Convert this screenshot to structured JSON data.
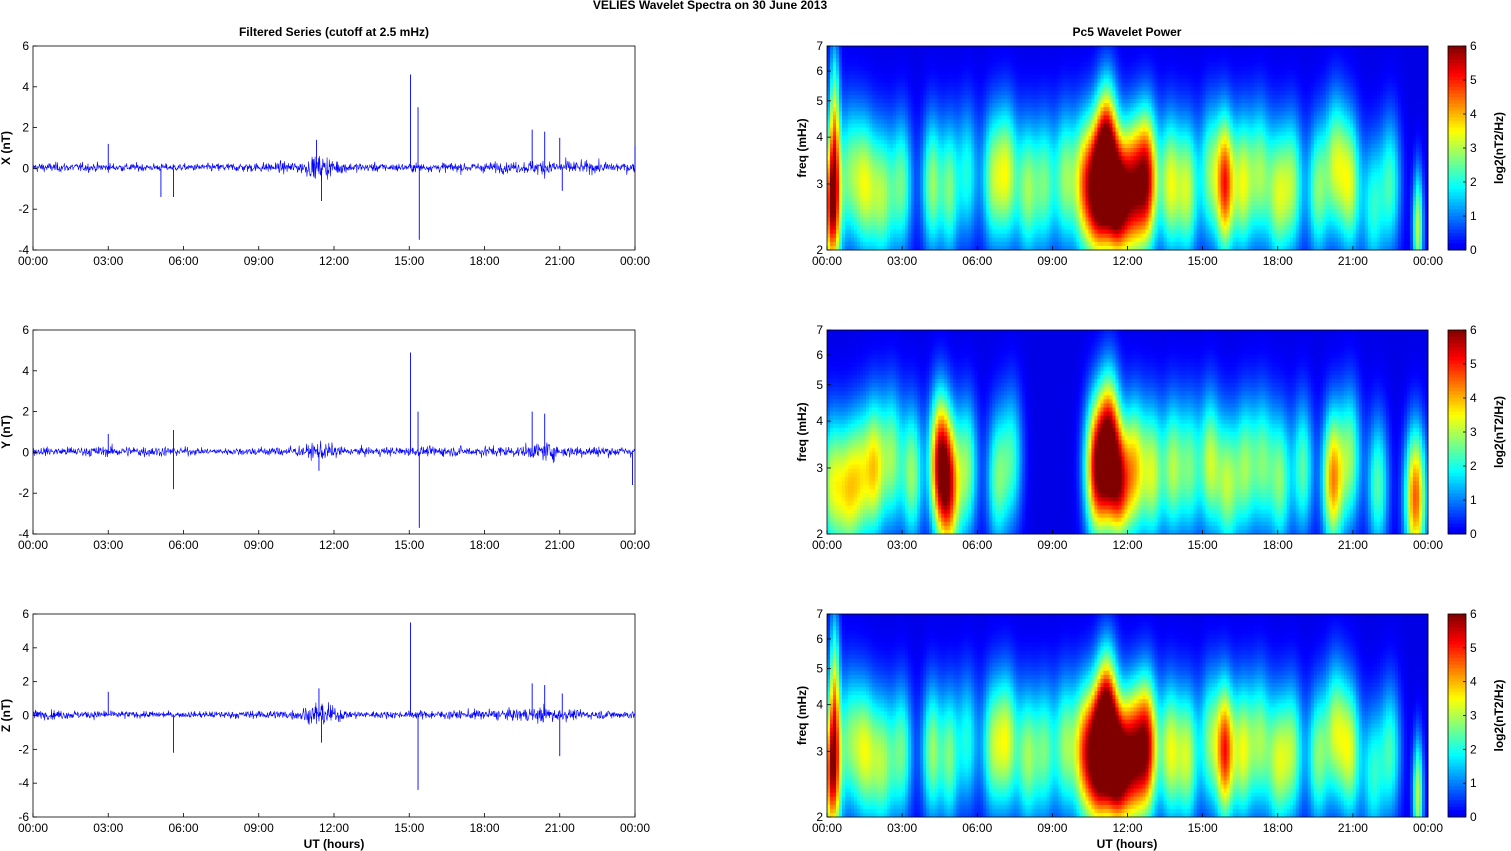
{
  "figure": {
    "suptitle": "VELIES Wavelet Spectra on 30 June      2013",
    "left_title": "Filtered Series (cutoff at 2.5 mHz)",
    "right_title": "Pc5 Wavelet Power",
    "xlabel": "UT (hours)"
  },
  "chart_data": [
    {
      "type": "line",
      "component": "X",
      "ylabel": "X (nT)",
      "xlim": [
        0,
        24
      ],
      "ylim": [
        -4,
        6
      ],
      "yticks": [
        "6",
        "4",
        "2",
        "0",
        "-2",
        "-4"
      ],
      "xticks": [
        "00:00",
        "03:00",
        "06:00",
        "09:00",
        "12:00",
        "15:00",
        "18:00",
        "21:00",
        "00:00"
      ],
      "color": "#0000ff",
      "noise_envelope": [
        [
          0,
          0.3
        ],
        [
          6,
          0.22
        ],
        [
          10.5,
          0.35
        ],
        [
          11.5,
          0.8
        ],
        [
          12.5,
          0.3
        ],
        [
          14.5,
          0.25
        ],
        [
          19.5,
          0.35
        ],
        [
          20.5,
          0.55
        ],
        [
          21.5,
          0.4
        ],
        [
          24,
          0.3
        ]
      ],
      "spikes": [
        [
          3.0,
          1.2
        ],
        [
          5.1,
          -1.4
        ],
        [
          5.6,
          -1.4
        ],
        [
          11.3,
          1.4
        ],
        [
          11.5,
          -1.6
        ],
        [
          15.05,
          4.6
        ],
        [
          15.35,
          3.0
        ],
        [
          15.4,
          -3.5
        ],
        [
          19.9,
          1.9
        ],
        [
          20.4,
          1.8
        ],
        [
          21.0,
          1.5
        ],
        [
          21.1,
          -1.1
        ],
        [
          24.0,
          1.1
        ]
      ]
    },
    {
      "type": "line",
      "component": "Y",
      "ylabel": "Y (nT)",
      "xlim": [
        0,
        24
      ],
      "ylim": [
        -4,
        6
      ],
      "yticks": [
        "6",
        "4",
        "2",
        "0",
        "-2",
        "-4"
      ],
      "xticks": [
        "00:00",
        "03:00",
        "06:00",
        "09:00",
        "12:00",
        "15:00",
        "18:00",
        "21:00",
        "00:00"
      ],
      "color": "#0000ff",
      "noise_envelope": [
        [
          0,
          0.25
        ],
        [
          4.5,
          0.35
        ],
        [
          5.5,
          0.3
        ],
        [
          7,
          0.18
        ],
        [
          10.8,
          0.35
        ],
        [
          11.5,
          0.6
        ],
        [
          12.5,
          0.25
        ],
        [
          19.5,
          0.35
        ],
        [
          20.5,
          0.6
        ],
        [
          21.5,
          0.35
        ],
        [
          24,
          0.3
        ]
      ],
      "spikes": [
        [
          3.0,
          0.9
        ],
        [
          5.6,
          1.1
        ],
        [
          5.6,
          -1.8
        ],
        [
          11.4,
          -0.9
        ],
        [
          15.05,
          4.9
        ],
        [
          15.35,
          2.0
        ],
        [
          15.4,
          -3.7
        ],
        [
          19.9,
          2.0
        ],
        [
          20.4,
          1.9
        ],
        [
          23.9,
          -1.6
        ]
      ]
    },
    {
      "type": "line",
      "component": "Z",
      "ylabel": "Z (nT)",
      "xlim": [
        0,
        24
      ],
      "ylim": [
        -6,
        6
      ],
      "yticks": [
        "6",
        "4",
        "2",
        "0",
        "-2",
        "-4",
        "-6"
      ],
      "xticks": [
        "00:00",
        "03:00",
        "06:00",
        "09:00",
        "12:00",
        "15:00",
        "18:00",
        "21:00",
        "00:00"
      ],
      "color": "#0000ff",
      "noise_envelope": [
        [
          0,
          0.35
        ],
        [
          6,
          0.22
        ],
        [
          10.5,
          0.35
        ],
        [
          11.5,
          1.0
        ],
        [
          12.5,
          0.3
        ],
        [
          14.5,
          0.25
        ],
        [
          19.5,
          0.45
        ],
        [
          20.5,
          0.7
        ],
        [
          21.5,
          0.35
        ],
        [
          24,
          0.3
        ]
      ],
      "spikes": [
        [
          3.0,
          1.4
        ],
        [
          5.6,
          -2.2
        ],
        [
          11.4,
          1.6
        ],
        [
          11.5,
          -1.6
        ],
        [
          15.05,
          5.5
        ],
        [
          15.35,
          -4.4
        ],
        [
          19.9,
          1.9
        ],
        [
          20.4,
          1.8
        ],
        [
          21.0,
          -2.4
        ],
        [
          21.1,
          1.3
        ]
      ]
    },
    {
      "type": "heatmap",
      "component": "X",
      "ylabel": "freq (mHz)",
      "xlim": [
        0,
        24
      ],
      "ylim": [
        2,
        7
      ],
      "yscale": "log",
      "yticks": [
        "7",
        "6",
        "5",
        "4",
        "3",
        "2"
      ],
      "xticks": [
        "00:00",
        "03:00",
        "06:00",
        "09:00",
        "12:00",
        "15:00",
        "18:00",
        "21:00",
        "00:00"
      ],
      "colorbar_label": "log2(nT2/Hz)",
      "colorbar_ticks": [
        "6",
        "5",
        "4",
        "3",
        "2",
        "1",
        "0"
      ],
      "clim": [
        0,
        6
      ],
      "colormap": [
        "#00008f",
        "#0000ff",
        "#00ffff",
        "#ffff00",
        "#ff0000",
        "#800000"
      ],
      "blobs": [
        [
          0.2,
          2.6,
          5.3,
          0.25,
          0.3
        ],
        [
          0.3,
          4.3,
          3.0,
          0.15,
          0.35
        ],
        [
          0.9,
          3.2,
          2.3,
          0.3,
          0.3
        ],
        [
          1.5,
          3.0,
          2.8,
          0.3,
          0.3
        ],
        [
          2.2,
          2.8,
          2.8,
          0.35,
          0.3
        ],
        [
          3.0,
          3.0,
          2.4,
          0.3,
          0.3
        ],
        [
          4.2,
          3.0,
          2.8,
          0.3,
          0.3
        ],
        [
          4.9,
          2.9,
          2.4,
          0.25,
          0.3
        ],
        [
          5.6,
          3.2,
          2.0,
          0.3,
          0.3
        ],
        [
          6.6,
          3.1,
          2.6,
          0.3,
          0.3
        ],
        [
          7.2,
          3.2,
          3.0,
          0.3,
          0.3
        ],
        [
          8.0,
          2.9,
          2.7,
          0.3,
          0.3
        ],
        [
          8.7,
          3.0,
          2.4,
          0.3,
          0.3
        ],
        [
          9.5,
          3.1,
          2.6,
          0.3,
          0.3
        ],
        [
          10.2,
          3.0,
          3.0,
          0.3,
          0.3
        ],
        [
          10.8,
          2.9,
          5.8,
          0.35,
          0.3
        ],
        [
          11.2,
          3.6,
          5.0,
          0.3,
          0.3
        ],
        [
          11.6,
          2.7,
          5.2,
          0.3,
          0.25
        ],
        [
          12.2,
          2.9,
          5.0,
          0.35,
          0.3
        ],
        [
          12.8,
          3.1,
          4.8,
          0.3,
          0.3
        ],
        [
          13.7,
          3.0,
          3.2,
          0.3,
          0.3
        ],
        [
          14.4,
          2.9,
          3.0,
          0.3,
          0.3
        ],
        [
          15.3,
          3.2,
          2.6,
          0.3,
          0.3
        ],
        [
          15.9,
          3.0,
          4.6,
          0.25,
          0.3
        ],
        [
          16.6,
          3.0,
          3.2,
          0.3,
          0.3
        ],
        [
          17.3,
          3.2,
          2.6,
          0.3,
          0.3
        ],
        [
          18.0,
          2.8,
          2.8,
          0.3,
          0.3
        ],
        [
          18.6,
          3.0,
          2.6,
          0.3,
          0.3
        ],
        [
          19.6,
          2.9,
          2.6,
          0.3,
          0.3
        ],
        [
          20.3,
          3.4,
          2.8,
          0.3,
          0.3
        ],
        [
          20.9,
          3.0,
          3.0,
          0.3,
          0.3
        ],
        [
          21.8,
          2.6,
          2.0,
          0.3,
          0.3
        ],
        [
          22.5,
          3.0,
          2.2,
          0.3,
          0.3
        ],
        [
          23.6,
          2.3,
          3.0,
          0.15,
          0.25
        ]
      ]
    },
    {
      "type": "heatmap",
      "component": "Y",
      "ylabel": "freq (mHz)",
      "xlim": [
        0,
        24
      ],
      "ylim": [
        2,
        7
      ],
      "yscale": "log",
      "yticks": [
        "7",
        "6",
        "5",
        "4",
        "3",
        "2"
      ],
      "xticks": [
        "00:00",
        "03:00",
        "06:00",
        "09:00",
        "12:00",
        "15:00",
        "18:00",
        "21:00",
        "00:00"
      ],
      "colorbar_label": "log2(nT2/Hz)",
      "colorbar_ticks": [
        "6",
        "5",
        "4",
        "3",
        "2",
        "1",
        "0"
      ],
      "clim": [
        0,
        6
      ],
      "colormap": [
        "#00008f",
        "#0000ff",
        "#00ffff",
        "#ffff00",
        "#ff0000",
        "#800000"
      ],
      "blobs": [
        [
          0.2,
          2.7,
          3.0,
          0.3,
          0.3
        ],
        [
          0.8,
          2.6,
          2.8,
          0.3,
          0.3
        ],
        [
          1.3,
          2.8,
          2.6,
          0.3,
          0.3
        ],
        [
          1.9,
          3.0,
          3.4,
          0.3,
          0.3
        ],
        [
          2.6,
          3.2,
          2.6,
          0.3,
          0.3
        ],
        [
          3.4,
          2.9,
          2.8,
          0.3,
          0.3
        ],
        [
          4.5,
          3.1,
          5.0,
          0.3,
          0.3
        ],
        [
          4.9,
          2.6,
          4.0,
          0.3,
          0.3
        ],
        [
          5.6,
          3.0,
          2.6,
          0.3,
          0.3
        ],
        [
          6.8,
          2.8,
          2.4,
          0.3,
          0.3
        ],
        [
          7.4,
          3.2,
          2.0,
          0.3,
          0.3
        ],
        [
          10.8,
          3.0,
          5.5,
          0.35,
          0.3
        ],
        [
          11.3,
          3.5,
          4.6,
          0.3,
          0.3
        ],
        [
          11.7,
          2.7,
          4.2,
          0.3,
          0.25
        ],
        [
          12.3,
          3.0,
          3.4,
          0.3,
          0.3
        ],
        [
          13.0,
          2.9,
          3.0,
          0.3,
          0.3
        ],
        [
          13.8,
          3.0,
          2.8,
          0.3,
          0.3
        ],
        [
          14.5,
          3.0,
          2.4,
          0.3,
          0.3
        ],
        [
          15.3,
          3.1,
          3.0,
          0.3,
          0.3
        ],
        [
          16.0,
          2.7,
          2.8,
          0.3,
          0.3
        ],
        [
          16.7,
          3.0,
          2.6,
          0.3,
          0.3
        ],
        [
          17.4,
          3.1,
          2.4,
          0.3,
          0.3
        ],
        [
          18.1,
          2.8,
          2.6,
          0.3,
          0.3
        ],
        [
          19.0,
          3.0,
          2.4,
          0.3,
          0.3
        ],
        [
          20.2,
          2.8,
          4.2,
          0.3,
          0.3
        ],
        [
          20.9,
          3.2,
          2.6,
          0.3,
          0.3
        ],
        [
          22.0,
          2.7,
          2.4,
          0.3,
          0.3
        ],
        [
          23.5,
          2.5,
          4.6,
          0.3,
          0.3
        ]
      ]
    },
    {
      "type": "heatmap",
      "component": "Z",
      "ylabel": "freq (mHz)",
      "xlim": [
        0,
        24
      ],
      "ylim": [
        2,
        7
      ],
      "yscale": "log",
      "yticks": [
        "7",
        "6",
        "5",
        "4",
        "3",
        "2"
      ],
      "xticks": [
        "00:00",
        "03:00",
        "06:00",
        "09:00",
        "12:00",
        "15:00",
        "18:00",
        "21:00",
        "00:00"
      ],
      "colorbar_label": "log2(nT2/Hz)",
      "colorbar_ticks": [
        "6",
        "5",
        "4",
        "3",
        "2",
        "1",
        "0"
      ],
      "clim": [
        0,
        6
      ],
      "colormap": [
        "#00008f",
        "#0000ff",
        "#00ffff",
        "#ffff00",
        "#ff0000",
        "#800000"
      ],
      "blobs": [
        [
          0.2,
          2.6,
          5.0,
          0.25,
          0.3
        ],
        [
          0.3,
          4.3,
          3.0,
          0.15,
          0.35
        ],
        [
          0.9,
          3.2,
          2.3,
          0.3,
          0.3
        ],
        [
          1.5,
          3.0,
          2.8,
          0.3,
          0.3
        ],
        [
          2.2,
          2.8,
          2.8,
          0.35,
          0.3
        ],
        [
          3.0,
          3.0,
          2.4,
          0.3,
          0.3
        ],
        [
          4.2,
          3.0,
          2.8,
          0.3,
          0.3
        ],
        [
          4.9,
          2.9,
          2.4,
          0.25,
          0.3
        ],
        [
          5.6,
          3.2,
          2.0,
          0.3,
          0.3
        ],
        [
          6.6,
          3.1,
          2.6,
          0.3,
          0.3
        ],
        [
          7.2,
          3.2,
          3.0,
          0.3,
          0.3
        ],
        [
          8.0,
          2.9,
          2.7,
          0.3,
          0.3
        ],
        [
          8.7,
          3.0,
          2.4,
          0.3,
          0.3
        ],
        [
          9.5,
          3.1,
          2.6,
          0.3,
          0.3
        ],
        [
          10.2,
          3.0,
          3.2,
          0.3,
          0.3
        ],
        [
          10.8,
          2.9,
          6.0,
          0.35,
          0.3
        ],
        [
          11.2,
          3.6,
          5.2,
          0.3,
          0.3
        ],
        [
          11.6,
          2.7,
          5.4,
          0.3,
          0.25
        ],
        [
          12.2,
          2.9,
          5.2,
          0.35,
          0.3
        ],
        [
          12.8,
          3.1,
          4.8,
          0.3,
          0.3
        ],
        [
          13.7,
          3.0,
          3.2,
          0.3,
          0.3
        ],
        [
          14.4,
          2.9,
          3.0,
          0.3,
          0.3
        ],
        [
          15.3,
          3.2,
          2.6,
          0.3,
          0.3
        ],
        [
          15.9,
          3.0,
          4.6,
          0.25,
          0.3
        ],
        [
          16.6,
          3.0,
          3.2,
          0.3,
          0.3
        ],
        [
          17.3,
          3.2,
          2.6,
          0.3,
          0.3
        ],
        [
          18.0,
          2.8,
          2.8,
          0.3,
          0.3
        ],
        [
          18.6,
          3.0,
          2.6,
          0.3,
          0.3
        ],
        [
          19.6,
          2.9,
          2.6,
          0.3,
          0.3
        ],
        [
          20.3,
          3.4,
          2.8,
          0.3,
          0.3
        ],
        [
          20.9,
          3.0,
          3.0,
          0.3,
          0.3
        ],
        [
          21.8,
          2.6,
          2.0,
          0.3,
          0.3
        ],
        [
          22.5,
          3.0,
          2.2,
          0.3,
          0.3
        ],
        [
          23.6,
          2.3,
          3.0,
          0.15,
          0.25
        ]
      ]
    }
  ]
}
